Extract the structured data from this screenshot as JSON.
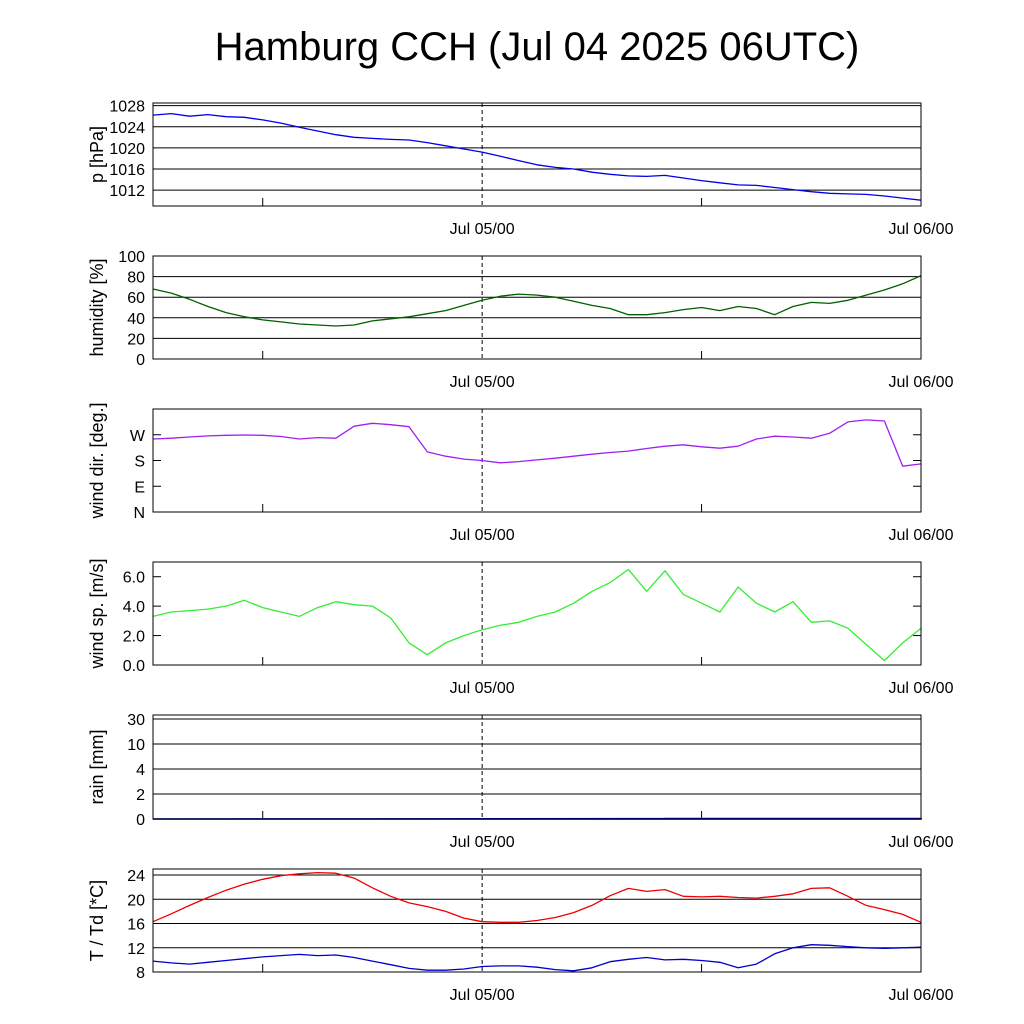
{
  "title": "Hamburg CCH (Jul 04 2025 06UTC)",
  "colors": {
    "pressure": "#0000ee",
    "humidity": "#005f00",
    "wind_dir": "#a020f0",
    "wind_speed": "#33ee33",
    "rain_green": "#2e9a5a",
    "rain_blue": "#0000cc",
    "temperature": "#ee0000",
    "dewpoint": "#0000cc"
  },
  "chart_data": [
    {
      "type": "line",
      "ylabel": "p [hPa]",
      "x_ticks": [
        "Jul 05/00",
        "Jul 06/00"
      ],
      "yticks": [
        1012,
        1016,
        1020,
        1024,
        1028
      ],
      "ylim": [
        1009,
        1028.5
      ],
      "grid": true,
      "series": [
        {
          "x": [
            0,
            1,
            2,
            3,
            4,
            5,
            6,
            7,
            8,
            9,
            10,
            11,
            12,
            13,
            14,
            15,
            16,
            17,
            18,
            19,
            20,
            21,
            22,
            23,
            24,
            25,
            26,
            27,
            28,
            29,
            30,
            31,
            32,
            33,
            34,
            35,
            36,
            37,
            38,
            39,
            40,
            41,
            42
          ],
          "values": [
            1026.2,
            1026.5,
            1026.0,
            1026.3,
            1025.9,
            1025.8,
            1025.3,
            1024.7,
            1023.9,
            1023.2,
            1022.5,
            1022.0,
            1021.8,
            1021.6,
            1021.5,
            1021.0,
            1020.4,
            1019.8,
            1019.2,
            1018.4,
            1017.6,
            1016.8,
            1016.3,
            1016.0,
            1015.4,
            1015.0,
            1014.7,
            1014.6,
            1014.8,
            1014.3,
            1013.8,
            1013.4,
            1013.0,
            1012.9,
            1012.5,
            1012.1,
            1011.7,
            1011.4,
            1011.3,
            1011.2,
            1010.9,
            1010.5,
            1010.1
          ],
          "color_key": "pressure"
        }
      ]
    },
    {
      "type": "line",
      "ylabel": "humidity [%]",
      "x_ticks": [
        "Jul 05/00",
        "Jul 06/00"
      ],
      "yticks": [
        0,
        20,
        40,
        60,
        80,
        100
      ],
      "ylim": [
        0,
        100
      ],
      "grid": true,
      "series": [
        {
          "x": [
            0,
            1,
            2,
            3,
            4,
            5,
            6,
            7,
            8,
            9,
            10,
            11,
            12,
            13,
            14,
            15,
            16,
            17,
            18,
            19,
            20,
            21,
            22,
            23,
            24,
            25,
            26,
            27,
            28,
            29,
            30,
            31,
            32,
            33,
            34,
            35,
            36,
            37,
            38,
            39,
            40,
            41,
            42
          ],
          "values": [
            68,
            64,
            58,
            51,
            45,
            41,
            38,
            36,
            34,
            33,
            32,
            33,
            37,
            39,
            41,
            44,
            47,
            52,
            57,
            61,
            63,
            62,
            60,
            56,
            52,
            49,
            43,
            43,
            45,
            48,
            50,
            47,
            51,
            49,
            43,
            51,
            55,
            54,
            57,
            62,
            67,
            73,
            81
          ],
          "color_key": "humidity"
        }
      ]
    },
    {
      "type": "line",
      "ylabel": "wind dir. [deg.]",
      "x_ticks": [
        "Jul 05/00",
        "Jul 06/00"
      ],
      "ytick_labels": [
        "N",
        "E",
        "S",
        "W"
      ],
      "ytick_values": [
        0,
        90,
        180,
        270
      ],
      "ylim": [
        0,
        360
      ],
      "grid": false,
      "series": [
        {
          "x": [
            0,
            1,
            2,
            3,
            4,
            5,
            6,
            7,
            8,
            9,
            10,
            11,
            12,
            13,
            14,
            15,
            16,
            17,
            18,
            19,
            20,
            21,
            22,
            23,
            24,
            25,
            26,
            27,
            28,
            29,
            30,
            31,
            32,
            33,
            34,
            35,
            36,
            37,
            38,
            39,
            40,
            41,
            42
          ],
          "values": [
            255,
            258,
            262,
            266,
            268,
            269,
            268,
            264,
            255,
            260,
            258,
            300,
            310,
            305,
            298,
            210,
            195,
            185,
            180,
            172,
            176,
            182,
            188,
            195,
            202,
            208,
            213,
            222,
            230,
            235,
            228,
            223,
            230,
            255,
            265,
            262,
            258,
            275,
            315,
            322,
            318,
            160,
            168
          ],
          "color_key": "wind_dir"
        }
      ]
    },
    {
      "type": "line",
      "ylabel": "wind sp. [m/s]",
      "x_ticks": [
        "Jul 05/00",
        "Jul 06/00"
      ],
      "yticks": [
        "0.0",
        "2.0",
        "4.0",
        "6.0"
      ],
      "ytick_values": [
        0,
        2,
        4,
        6
      ],
      "ylim": [
        0,
        7
      ],
      "grid": false,
      "series": [
        {
          "x": [
            0,
            1,
            2,
            3,
            4,
            5,
            6,
            7,
            8,
            9,
            10,
            11,
            12,
            13,
            14,
            15,
            16,
            17,
            18,
            19,
            20,
            21,
            22,
            23,
            24,
            25,
            26,
            27,
            28,
            29,
            30,
            31,
            32,
            33,
            34,
            35,
            36,
            37,
            38,
            39,
            40,
            41,
            42
          ],
          "values": [
            3.3,
            3.6,
            3.7,
            3.8,
            4.0,
            4.4,
            3.9,
            3.6,
            3.3,
            3.9,
            4.3,
            4.1,
            4.0,
            3.2,
            1.5,
            0.7,
            1.5,
            2.0,
            2.4,
            2.7,
            2.9,
            3.3,
            3.6,
            4.2,
            5.0,
            5.6,
            6.5,
            5.0,
            6.4,
            4.8,
            4.2,
            3.6,
            5.3,
            4.2,
            3.6,
            4.3,
            2.9,
            3.0,
            2.5,
            1.4,
            0.3,
            1.5,
            2.5
          ],
          "color_key": "wind_speed"
        }
      ]
    },
    {
      "type": "area",
      "ylabel": "rain [mm]",
      "x_ticks": [
        "Jul 05/00",
        "Jul 06/00"
      ],
      "yticks": [
        0,
        2,
        4,
        10,
        30
      ],
      "ylim": [
        0,
        30
      ],
      "grid": true,
      "series": [
        {
          "x": [
            0,
            28,
            28,
            31,
            42
          ],
          "values": [
            0,
            0,
            0.04,
            0.04,
            0.04
          ],
          "color_key": "rain_green"
        },
        {
          "x": [
            0,
            31,
            42
          ],
          "values": [
            0,
            0.03,
            0.03
          ],
          "color_key": "rain_blue"
        }
      ]
    },
    {
      "type": "line",
      "ylabel": "T / Td [*C]",
      "x_ticks": [
        "Jul 05/00",
        "Jul 06/00"
      ],
      "yticks": [
        8,
        12,
        16,
        20,
        24
      ],
      "ylim": [
        8,
        25
      ],
      "grid": true,
      "series": [
        {
          "x": [
            0,
            1,
            2,
            3,
            4,
            5,
            6,
            7,
            8,
            9,
            10,
            11,
            12,
            13,
            14,
            15,
            16,
            17,
            18,
            19,
            20,
            21,
            22,
            23,
            24,
            25,
            26,
            27,
            28,
            29,
            30,
            31,
            32,
            33,
            34,
            35,
            36,
            37,
            38,
            39,
            40,
            41,
            42
          ],
          "values": [
            16.3,
            17.6,
            19.0,
            20.3,
            21.5,
            22.5,
            23.3,
            23.9,
            24.2,
            24.4,
            24.3,
            23.5,
            21.9,
            20.5,
            19.4,
            18.8,
            18.0,
            16.9,
            16.3,
            16.2,
            16.2,
            16.5,
            17.0,
            17.8,
            19.0,
            20.6,
            21.8,
            21.3,
            21.6,
            20.5,
            20.4,
            20.5,
            20.3,
            20.2,
            20.5,
            20.9,
            21.8,
            21.9,
            20.5,
            19.0,
            18.3,
            17.5,
            16.2
          ],
          "color_key": "temperature"
        },
        {
          "x": [
            0,
            1,
            2,
            3,
            4,
            5,
            6,
            7,
            8,
            9,
            10,
            11,
            12,
            13,
            14,
            15,
            16,
            17,
            18,
            19,
            20,
            21,
            22,
            23,
            24,
            25,
            26,
            27,
            28,
            29,
            30,
            31,
            32,
            33,
            34,
            35,
            36,
            37,
            38,
            39,
            40,
            41,
            42
          ],
          "values": [
            9.8,
            9.5,
            9.3,
            9.6,
            9.9,
            10.2,
            10.5,
            10.7,
            10.9,
            10.7,
            10.8,
            10.4,
            9.8,
            9.2,
            8.6,
            8.3,
            8.3,
            8.5,
            8.9,
            9.0,
            9.0,
            8.8,
            8.4,
            8.2,
            8.7,
            9.7,
            10.1,
            10.4,
            10.0,
            10.1,
            9.9,
            9.6,
            8.7,
            9.3,
            11.0,
            12.0,
            12.5,
            12.4,
            12.2,
            12.0,
            11.9,
            12.0,
            12.1
          ],
          "color_key": "dewpoint"
        }
      ]
    }
  ]
}
